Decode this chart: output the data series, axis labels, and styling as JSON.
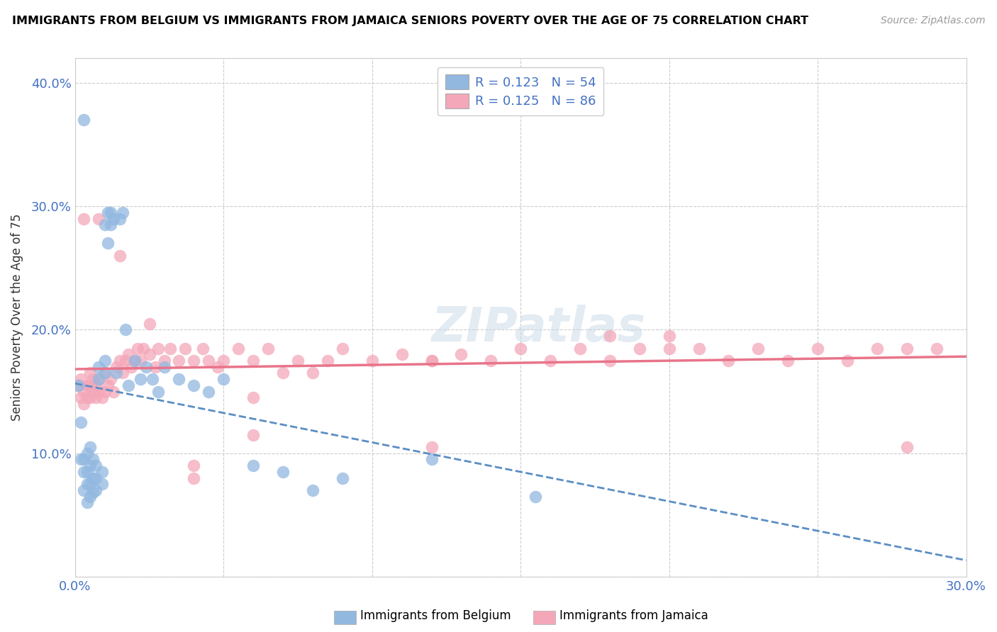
{
  "title": "IMMIGRANTS FROM BELGIUM VS IMMIGRANTS FROM JAMAICA SENIORS POVERTY OVER THE AGE OF 75 CORRELATION CHART",
  "source": "Source: ZipAtlas.com",
  "ylabel": "Seniors Poverty Over the Age of 75",
  "xlim": [
    0.0,
    0.3
  ],
  "ylim": [
    0.0,
    0.42
  ],
  "xticks": [
    0.0,
    0.05,
    0.1,
    0.15,
    0.2,
    0.25,
    0.3
  ],
  "xticklabels": [
    "0.0%",
    "",
    "",
    "",
    "",
    "",
    "30.0%"
  ],
  "yticks": [
    0.0,
    0.1,
    0.2,
    0.3,
    0.4
  ],
  "yticklabels": [
    "",
    "10.0%",
    "20.0%",
    "30.0%",
    "40.0%"
  ],
  "belgium_color": "#92b8e0",
  "jamaica_color": "#f4a7b9",
  "trendline_belgium_color": "#5b8ec4",
  "trendline_jamaica_color": "#e8748a",
  "watermark": "ZIPatlas",
  "legend_color": "#4472c4",
  "belgium_x": [
    0.001,
    0.002,
    0.002,
    0.003,
    0.003,
    0.003,
    0.004,
    0.004,
    0.004,
    0.004,
    0.005,
    0.005,
    0.005,
    0.005,
    0.006,
    0.006,
    0.006,
    0.007,
    0.007,
    0.007,
    0.008,
    0.008,
    0.009,
    0.009,
    0.01,
    0.01,
    0.01,
    0.011,
    0.011,
    0.012,
    0.012,
    0.013,
    0.014,
    0.015,
    0.016,
    0.017,
    0.018,
    0.02,
    0.022,
    0.024,
    0.026,
    0.028,
    0.03,
    0.035,
    0.04,
    0.045,
    0.05,
    0.06,
    0.07,
    0.08,
    0.09,
    0.12,
    0.155,
    0.003
  ],
  "belgium_y": [
    0.155,
    0.095,
    0.125,
    0.07,
    0.085,
    0.095,
    0.06,
    0.075,
    0.085,
    0.1,
    0.065,
    0.075,
    0.09,
    0.105,
    0.068,
    0.08,
    0.095,
    0.07,
    0.08,
    0.09,
    0.16,
    0.17,
    0.075,
    0.085,
    0.165,
    0.175,
    0.285,
    0.295,
    0.27,
    0.285,
    0.295,
    0.29,
    0.165,
    0.29,
    0.295,
    0.2,
    0.155,
    0.175,
    0.16,
    0.17,
    0.16,
    0.15,
    0.17,
    0.16,
    0.155,
    0.15,
    0.16,
    0.09,
    0.085,
    0.07,
    0.08,
    0.095,
    0.065,
    0.37
  ],
  "jamaica_x": [
    0.001,
    0.002,
    0.002,
    0.003,
    0.003,
    0.004,
    0.004,
    0.005,
    0.005,
    0.005,
    0.006,
    0.006,
    0.007,
    0.007,
    0.008,
    0.008,
    0.009,
    0.01,
    0.01,
    0.011,
    0.012,
    0.013,
    0.014,
    0.015,
    0.016,
    0.017,
    0.018,
    0.019,
    0.02,
    0.021,
    0.022,
    0.023,
    0.025,
    0.027,
    0.028,
    0.03,
    0.032,
    0.035,
    0.037,
    0.04,
    0.043,
    0.045,
    0.048,
    0.05,
    0.055,
    0.06,
    0.065,
    0.07,
    0.075,
    0.08,
    0.085,
    0.09,
    0.1,
    0.11,
    0.12,
    0.13,
    0.14,
    0.15,
    0.16,
    0.17,
    0.18,
    0.19,
    0.2,
    0.21,
    0.22,
    0.23,
    0.24,
    0.25,
    0.26,
    0.27,
    0.28,
    0.29,
    0.003,
    0.008,
    0.015,
    0.025,
    0.04,
    0.06,
    0.12,
    0.18,
    0.12,
    0.06,
    0.04,
    0.005,
    0.28,
    0.2
  ],
  "jamaica_y": [
    0.155,
    0.145,
    0.16,
    0.15,
    0.14,
    0.155,
    0.145,
    0.145,
    0.155,
    0.165,
    0.15,
    0.16,
    0.145,
    0.155,
    0.15,
    0.16,
    0.145,
    0.15,
    0.165,
    0.155,
    0.16,
    0.15,
    0.17,
    0.175,
    0.165,
    0.175,
    0.18,
    0.17,
    0.175,
    0.185,
    0.175,
    0.185,
    0.18,
    0.17,
    0.185,
    0.175,
    0.185,
    0.175,
    0.185,
    0.175,
    0.185,
    0.175,
    0.17,
    0.175,
    0.185,
    0.175,
    0.185,
    0.165,
    0.175,
    0.165,
    0.175,
    0.185,
    0.175,
    0.18,
    0.175,
    0.18,
    0.175,
    0.185,
    0.175,
    0.185,
    0.175,
    0.185,
    0.185,
    0.185,
    0.175,
    0.185,
    0.175,
    0.185,
    0.175,
    0.185,
    0.185,
    0.185,
    0.29,
    0.29,
    0.26,
    0.205,
    0.09,
    0.115,
    0.105,
    0.195,
    0.175,
    0.145,
    0.08,
    0.155,
    0.105,
    0.195
  ]
}
